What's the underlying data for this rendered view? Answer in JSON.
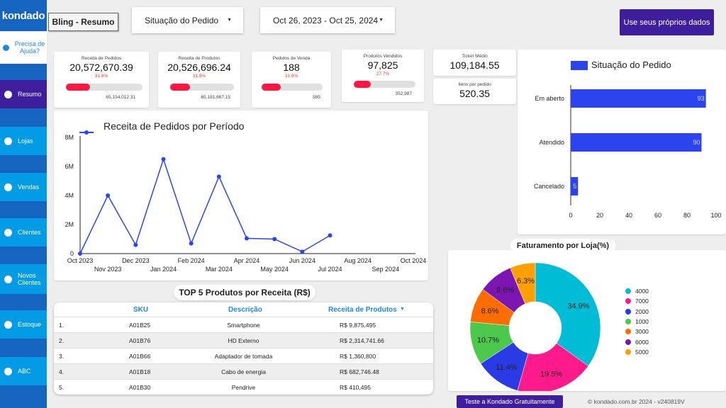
{
  "app": {
    "logo": "kondado",
    "title": "Bling - Resumo"
  },
  "sidebar": {
    "help_label": "Precisa de Ajuda?",
    "items": [
      {
        "label": "Resumo",
        "active": true
      },
      {
        "label": "Lojas"
      },
      {
        "label": "Vendas"
      },
      {
        "label": "Clientes"
      },
      {
        "label": "Novos Clientes"
      },
      {
        "label": "Estoque"
      },
      {
        "label": "ABC"
      }
    ]
  },
  "filters": {
    "status_label": "Situação do Pedido",
    "date_range": "Oct 26, 2023 - Oct 25, 2024"
  },
  "cta_label": "Use seus próprios dados",
  "kpis": [
    {
      "label": "Receita de Pedidos",
      "value": "20,572,670.39",
      "pct": "31.6%",
      "target": "65,154,012.31",
      "fill": 0.316
    },
    {
      "label": "Receita de Produtos",
      "value": "20,526,696.24",
      "pct": "31.5%",
      "target": "65,181,667.15",
      "fill": 0.315
    },
    {
      "label": "Pedidos de Venda",
      "value": "188",
      "pct": "31.6%",
      "target": "595",
      "fill": 0.316
    },
    {
      "label": "Produtos Vendidos",
      "value": "97,825",
      "pct": "27.7%",
      "target": "352,987",
      "fill": 0.277
    }
  ],
  "small_kpis": [
    {
      "label": "Ticket Médio",
      "value": "109,184.55"
    },
    {
      "label": "Itens por pedido",
      "value": "520.35"
    }
  ],
  "colors": {
    "accent": "#3f1e9e",
    "nav": "#039be5",
    "primary": "#1565c0",
    "bar": "#2b44f0",
    "kpi_bar": "#ff1744"
  },
  "chart_data": [
    {
      "type": "line",
      "title": "Receita de Pedidos por Período",
      "legend": "Receita de Pedidos por Período",
      "x_ticks_top": [
        "Oct 2023",
        "Dec 2023",
        "Feb 2024",
        "Apr 2024",
        "Jun 2024",
        "Aug 2024",
        "Oct 2024"
      ],
      "x_ticks_bottom": [
        "Nov 2023",
        "Jan 2024",
        "Mar 2024",
        "May 2024",
        "Jul 2024",
        "Sep 2024"
      ],
      "y_ticks": [
        "0",
        "2M",
        "4M",
        "6M",
        "8M"
      ],
      "ylim": [
        0,
        8000000
      ],
      "series": [
        {
          "name": "Receita de Pedidos por Período",
          "x": [
            "2023-10",
            "2023-11",
            "2023-12",
            "2024-01",
            "2024-02",
            "2024-03",
            "2024-04",
            "2024-05",
            "2024-06",
            "2024-07"
          ],
          "values": [
            0,
            4000000,
            600000,
            6500000,
            700000,
            5300000,
            1050000,
            1000000,
            130000,
            1250000
          ]
        }
      ],
      "grid": false
    },
    {
      "type": "bar",
      "orientation": "horizontal",
      "legend": "Situação do Pedido",
      "categories": [
        "Em aberto",
        "Atendido",
        "Cancelado"
      ],
      "values": [
        93,
        90,
        5
      ],
      "x_ticks": [
        "0",
        "20",
        "40",
        "60",
        "80",
        "100"
      ],
      "xlim": [
        0,
        100
      ]
    },
    {
      "type": "pie",
      "title": "Faturamento por Loja(%)",
      "categories": [
        "4000",
        "7000",
        "2000",
        "1000",
        "3000",
        "6000",
        "5000"
      ],
      "values": [
        34.9,
        19.5,
        11.4,
        10.7,
        8.6,
        8.6,
        6.3
      ],
      "labels": [
        "34.9%",
        "19.5%",
        "11.4%",
        "10.7%",
        "8.6%",
        "8.6%",
        "6.3%"
      ],
      "colors": [
        "#00bcd4",
        "#ff1a8c",
        "#2a3be6",
        "#4cc94c",
        "#ff6d00",
        "#7b16b3",
        "#ffa000"
      ],
      "legend_position": "right"
    }
  ],
  "table": {
    "title": "TOP 5 Produtos por Receita (R$)",
    "headers": [
      "SKU",
      "Descrição",
      "Receita de Produtos"
    ],
    "sort_icon": "sort-down-icon",
    "rows": [
      {
        "n": "1.",
        "sku": "A01B25",
        "desc": "Smartphone",
        "rev": "R$ 9,875,495"
      },
      {
        "n": "2.",
        "sku": "A01B76",
        "desc": "HD Externo",
        "rev": "R$ 2,314,741.66"
      },
      {
        "n": "3.",
        "sku": "A01B66",
        "desc": "Adaptador de tomada",
        "rev": "R$ 1,360,800"
      },
      {
        "n": "4.",
        "sku": "A01B18",
        "desc": "Cabo de energia",
        "rev": "R$ 682,746.48"
      },
      {
        "n": "5.",
        "sku": "A01B30",
        "desc": "Pendrive",
        "rev": "R$ 410,495"
      }
    ]
  },
  "footer": {
    "cta": "Teste a Kondado Gratuitamente",
    "copyright": "© kondado.com.br 2024 - v240819V"
  }
}
